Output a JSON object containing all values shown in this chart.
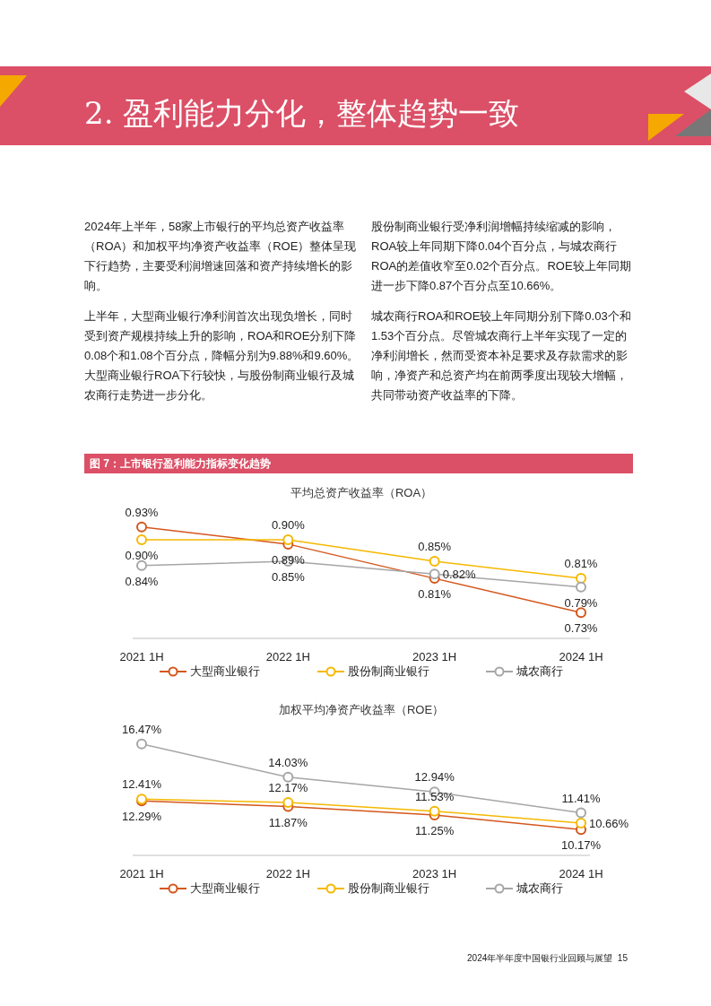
{
  "chart_data": [
    {
      "type": "line",
      "title": "平均总资产收益率（ROA）",
      "categories": [
        "2021 1H",
        "2022 1H",
        "2023 1H",
        "2024 1H"
      ],
      "series": [
        {
          "name": "大型商业银行",
          "color": "#d4571c",
          "values": [
            0.93,
            0.89,
            0.81,
            0.73
          ],
          "value_labels": [
            "0.93%",
            "0.89%",
            "0.81%",
            "0.73%"
          ]
        },
        {
          "name": "股份制商业银行",
          "color": "#f5b800",
          "values": [
            0.9,
            0.9,
            0.85,
            0.81
          ],
          "value_labels": [
            "0.90%",
            "0.90%",
            "0.85%",
            "0.81%"
          ]
        },
        {
          "name": "城农商行",
          "color": "#a6a6a6",
          "values": [
            0.84,
            0.85,
            0.82,
            0.79
          ],
          "value_labels": [
            "0.84%",
            "0.85%",
            "0.82%",
            "0.79%"
          ]
        }
      ],
      "legend": "bottom",
      "marker": "circle",
      "line_style": "solid",
      "grid": false,
      "tick_labels": "x",
      "annotations": [
        "2. 盈利能力分化，整体趋势一致",
        "2024年上半年，58家上市银行的平均总资产收益率（ROA）和加权平均净资产收益率（ROE）整体呈现下行趋势，主要受利润增速回落和资产持续增长的影响。",
        "上半年，大型商业银行净利润首次出现负增长，同时受到资产规模持续上升的影响，ROA和ROE分别下降0.08个和1.08个百分点，降幅分别为9.88%和9.60%。大型商业银行ROA下行较快，与股份制商业银行及城农商行走势进一步分化。",
        "股份制商业银行受净利润增幅持续缩减的影响，ROA较上年同期下降0.04个百分点，与城农商行ROA的差值收窄至0.02个百分点。ROE较上年同期进一步下降0.87个百分点至10.66%。",
        "城农商行ROA和ROE较上年同期分别下降0.03个和1.53个百分点。尽管城农商行上半年实现了一定的净利润增长，然而受资本补足要求及存款需求的影响，净资产和总资产均在前两季度出现较大增幅，共同带动资产收益率的下降。",
        "图 7：上市银行盈利能力指标变化趋势"
      ]
    },
    {
      "type": "line",
      "title": "加权平均净资产收益率（ROE）",
      "categories": [
        "2021 1H",
        "2022 1H",
        "2023 1H",
        "2024 1H"
      ],
      "series": [
        {
          "name": "大型商业银行",
          "color": "#d4571c",
          "values": [
            12.29,
            11.87,
            11.25,
            10.17
          ],
          "value_labels": [
            "12.29%",
            "11.87%",
            "11.25%",
            "10.17%"
          ]
        },
        {
          "name": "股份制商业银行",
          "color": "#f5b800",
          "values": [
            12.41,
            12.17,
            11.53,
            10.66
          ],
          "value_labels": [
            "12.41%",
            "12.17%",
            "11.53%",
            "10.66%"
          ]
        },
        {
          "name": "城农商行",
          "color": "#a6a6a6",
          "values": [
            16.47,
            14.03,
            12.94,
            11.41
          ],
          "value_labels": [
            "16.47%",
            "14.03%",
            "12.94%",
            "11.41%"
          ]
        }
      ],
      "legend": "bottom",
      "marker": "circle",
      "line_style": "solid",
      "grid": false,
      "tick_labels": "x",
      "annotations": [
        "2024年半年度中国银行业回顾与展望  15"
      ]
    }
  ]
}
